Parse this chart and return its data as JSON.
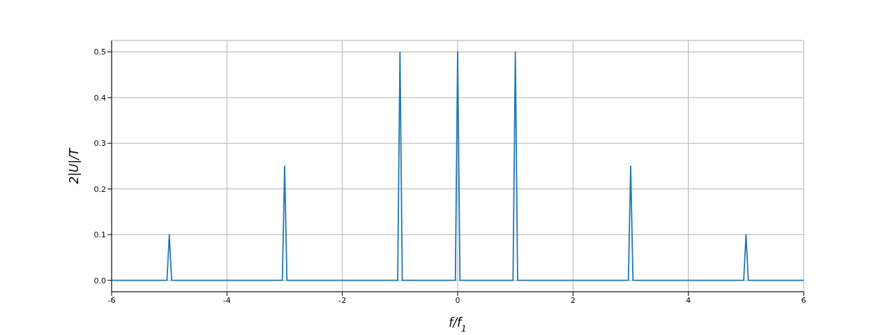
{
  "chart_data": {
    "type": "line",
    "xlabel": "f/f$_{1}$",
    "ylabel": "2|U|/T",
    "x": [
      -6,
      -5.04,
      -5,
      -4.96,
      -3.04,
      -3,
      -2.96,
      -1.04,
      -1,
      -0.96,
      -0.04,
      0,
      0.04,
      0.96,
      1,
      1.04,
      2.96,
      3,
      3.04,
      4.96,
      5,
      5.04,
      6
    ],
    "series": [
      {
        "color": "#1f77b4",
        "values": [
          0,
          0,
          0.1,
          0,
          0,
          0.25,
          0,
          0,
          0.5,
          0,
          0,
          0.5,
          0,
          0,
          0.5,
          0,
          0,
          0.25,
          0,
          0,
          0.1,
          0,
          0
        ]
      }
    ],
    "xlim": [
      -6,
      6
    ],
    "xticks": [
      -6,
      -4,
      -2,
      0,
      2,
      4,
      6
    ],
    "ylim": [
      -0.025,
      0.525
    ],
    "yticks": [
      {
        "value": 0,
        "label": "0.0"
      },
      0.1,
      0.2,
      0.3,
      0.4,
      0.5
    ],
    "grid": true,
    "marker": "none",
    "line_style": "solid",
    "legend": false
  }
}
